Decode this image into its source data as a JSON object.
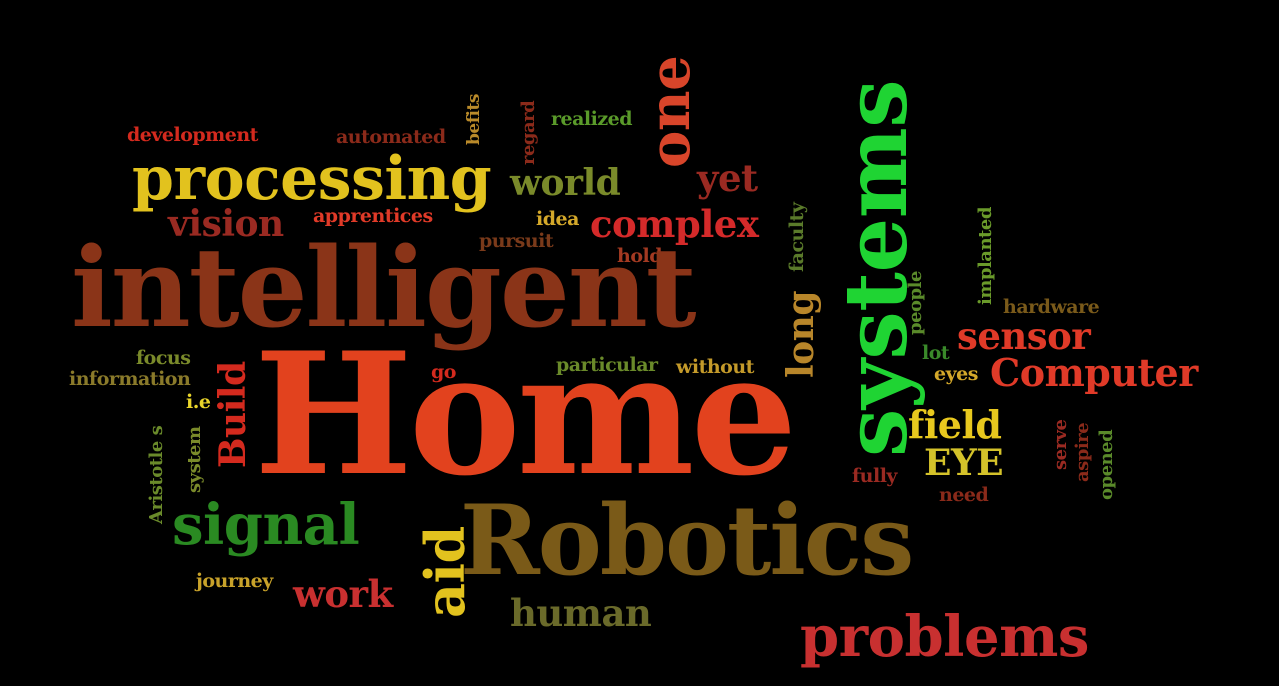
{
  "background": "#000000",
  "words": [
    {
      "text": "development",
      "color": "#d42a1e"
    },
    {
      "text": "automated",
      "color": "#8b2a1a"
    },
    {
      "text": "befits",
      "color": "#b98a2a"
    },
    {
      "text": "regard",
      "color": "#8b2a1a"
    },
    {
      "text": "realized",
      "color": "#5a9a2a"
    },
    {
      "text": "one",
      "color": "#d8452a"
    },
    {
      "text": "systems",
      "color": "#1fd433"
    },
    {
      "text": "processing",
      "color": "#e2c21e"
    },
    {
      "text": "world",
      "color": "#7a8a2a"
    },
    {
      "text": "yet",
      "color": "#9a2a22"
    },
    {
      "text": "vision",
      "color": "#9a2a22"
    },
    {
      "text": "apprentices",
      "color": "#e03a28"
    },
    {
      "text": "idea",
      "color": "#d4a82a"
    },
    {
      "text": "complex",
      "color": "#d42a2a"
    },
    {
      "text": "pursuit",
      "color": "#7a3a1a"
    },
    {
      "text": "holds",
      "color": "#a33a22"
    },
    {
      "text": "faculty",
      "color": "#5a7a2a"
    },
    {
      "text": "intelligent",
      "color": "#8a3418"
    },
    {
      "text": "implanted",
      "color": "#6a9a2a"
    },
    {
      "text": "people",
      "color": "#5a8a2a"
    },
    {
      "text": "hardware",
      "color": "#7a5a1a"
    },
    {
      "text": "long",
      "color": "#b8862a"
    },
    {
      "text": "sensor",
      "color": "#e03a28"
    },
    {
      "text": "lot",
      "color": "#3a8a2a"
    },
    {
      "text": "focus",
      "color": "#7a8a2a"
    },
    {
      "text": "information",
      "color": "#8a7a2a"
    },
    {
      "text": "Build",
      "color": "#d42a1e"
    },
    {
      "text": "i.e",
      "color": "#e8d42a"
    },
    {
      "text": "go",
      "color": "#d42a1e"
    },
    {
      "text": "particular",
      "color": "#6a8a2a"
    },
    {
      "text": "without",
      "color": "#c49a2a"
    },
    {
      "text": "eyes",
      "color": "#d4a82a"
    },
    {
      "text": "Computer",
      "color": "#e03a28"
    },
    {
      "text": "Home",
      "color": "#e2421e"
    },
    {
      "text": "Aristotle s",
      "color": "#6a8a2a"
    },
    {
      "text": "system",
      "color": "#7a8a2a"
    },
    {
      "text": "field",
      "color": "#e8c81e"
    },
    {
      "text": "EYE",
      "color": "#d4c22a"
    },
    {
      "text": "fully",
      "color": "#9a2a22"
    },
    {
      "text": "need",
      "color": "#8a2a1a"
    },
    {
      "text": "serve",
      "color": "#9a2a22"
    },
    {
      "text": "aspire",
      "color": "#8a2a1a"
    },
    {
      "text": "opened",
      "color": "#5a8a2a"
    },
    {
      "text": "signal",
      "color": "#2a8a22"
    },
    {
      "text": "aid",
      "color": "#e2c21e"
    },
    {
      "text": "Robotics",
      "color": "#7a5a18"
    },
    {
      "text": "journey",
      "color": "#c8a22a"
    },
    {
      "text": "work",
      "color": "#c83030"
    },
    {
      "text": "human",
      "color": "#6a6a2a"
    },
    {
      "text": "problems",
      "color": "#c83030"
    }
  ]
}
